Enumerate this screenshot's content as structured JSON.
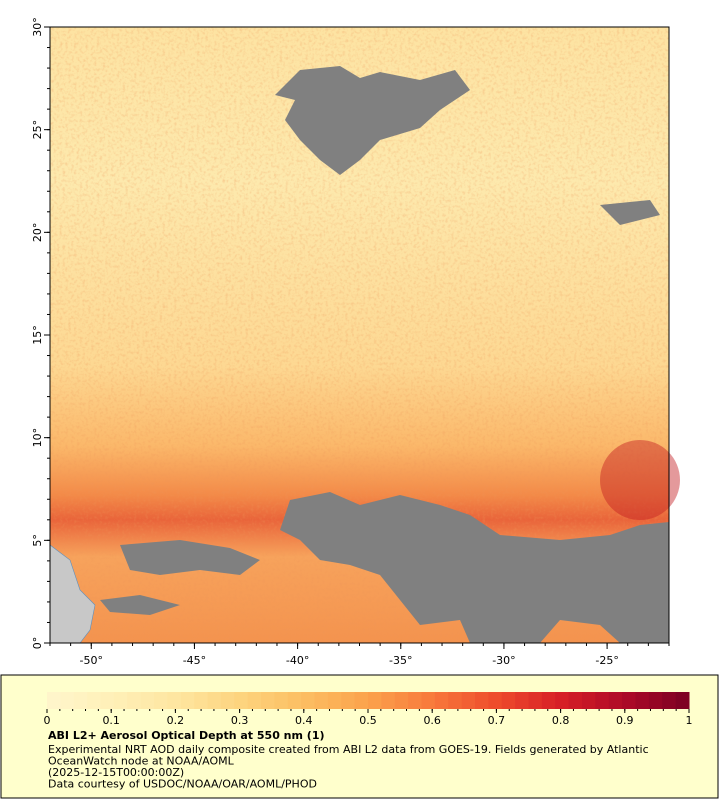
{
  "chart_data": {
    "type": "map",
    "title": "ABI L2+ Aerosol Optical Depth at 550 nm (1)",
    "notes": [
      "Experimental NRT AOD daily composite created from ABI L2 data from GOES-19. Fields generated by Atlantic",
      "OceanWatch node at NOAA/AOML",
      "(2025-12-15T00:00:00Z)",
      "Data courtesy of USDOC/NOAA/OAR/AOML/PHOD"
    ],
    "xlim": [
      -52,
      -22
    ],
    "ylim": [
      0,
      30
    ],
    "xticks": [
      {
        "value": -50,
        "label": "-50°"
      },
      {
        "value": -45,
        "label": "-45°"
      },
      {
        "value": -40,
        "label": "-40°"
      },
      {
        "value": -35,
        "label": "-35°"
      },
      {
        "value": -30,
        "label": "-30°"
      },
      {
        "value": -25,
        "label": "-25°"
      }
    ],
    "yticks": [
      {
        "value": 0,
        "label": "0°"
      },
      {
        "value": 5,
        "label": "5°"
      },
      {
        "value": 10,
        "label": "10°"
      },
      {
        "value": 15,
        "label": "15°"
      },
      {
        "value": 20,
        "label": "20°"
      },
      {
        "value": 25,
        "label": "25°"
      },
      {
        "value": 30,
        "label": "30°"
      }
    ],
    "colorbar": {
      "range": [
        0,
        1
      ],
      "ticks": [
        0,
        0.1,
        0.2,
        0.3,
        0.4,
        0.5,
        0.6,
        0.7,
        0.8,
        0.9,
        1
      ],
      "colors": [
        "#fff6cc",
        "#fff0b8",
        "#fee6a0",
        "#fdd47f",
        "#fcbe62",
        "#fba24c",
        "#f8793b",
        "#ee4c2c",
        "#d71f26",
        "#ad0a27",
        "#7a0022"
      ]
    }
  }
}
